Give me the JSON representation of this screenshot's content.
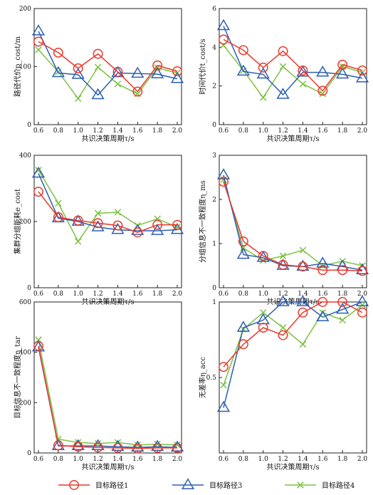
{
  "legend": [
    {
      "key": "s1",
      "label": "目标路径1",
      "color": "#e8392b",
      "marker": "circle"
    },
    {
      "key": "s3",
      "label": "目标路径3",
      "color": "#2d5fb3",
      "marker": "triangle"
    },
    {
      "key": "s4",
      "label": "目标路径4",
      "color": "#7cc242",
      "marker": "x"
    }
  ],
  "chart_data": [
    {
      "id": "path-cost",
      "type": "line",
      "ylabel": "路径代价p_cost/m",
      "xlabel": "共识决策周期τ/s",
      "x": [
        0.6,
        0.8,
        1.0,
        1.2,
        1.4,
        1.6,
        1.8,
        2.0
      ],
      "xticks": [
        "0.6",
        "0.8",
        "1.0",
        "1.2",
        "1.4",
        "1.6",
        "1.8",
        "2.0"
      ],
      "ylim": [
        0,
        200
      ],
      "yticks": [
        0,
        100,
        200
      ],
      "series": [
        {
          "name": "目标路径1",
          "values": [
            143,
            124,
            97,
            122,
            91,
            57,
            102,
            92
          ]
        },
        {
          "name": "目标路径3",
          "values": [
            161,
            89,
            86,
            51,
            89,
            88,
            87,
            79
          ]
        },
        {
          "name": "目标路径4",
          "values": [
            129,
            91,
            45,
            99,
            70,
            53,
            98,
            89
          ]
        }
      ]
    },
    {
      "id": "time-cost",
      "type": "line",
      "ylabel": "时间代价t_cost/s",
      "xlabel": "共识决策周期τ/s",
      "x": [
        0.6,
        0.8,
        1.0,
        1.2,
        1.4,
        1.6,
        1.8,
        2.0
      ],
      "xticks": [
        "0.6",
        "0.8",
        "1.0",
        "1.2",
        "1.4",
        "1.6",
        "1.8",
        "2.0"
      ],
      "ylim": [
        0,
        6
      ],
      "yticks": [
        0,
        2,
        4,
        6
      ],
      "series": [
        {
          "name": "目标路径1",
          "values": [
            4.4,
            3.85,
            2.95,
            3.8,
            2.8,
            1.75,
            3.1,
            2.8
          ]
        },
        {
          "name": "目标路径3",
          "values": [
            5.1,
            2.75,
            2.6,
            1.55,
            2.7,
            2.7,
            2.6,
            2.4
          ]
        },
        {
          "name": "目标路径4",
          "values": [
            4.1,
            2.8,
            1.4,
            3.0,
            2.1,
            1.6,
            3.0,
            2.7
          ]
        }
      ]
    },
    {
      "id": "cluster-energy",
      "type": "line",
      "ylabel": "集群分组能耗e_cost",
      "xlabel": "共识决策周期τ/s",
      "x": [
        0.6,
        0.8,
        1.0,
        1.2,
        1.4,
        1.6,
        1.8,
        2.0
      ],
      "xticks": [
        "0.6",
        "0.8",
        "1.0",
        "1.2",
        "1.4",
        "1.6",
        "1.8",
        "2.0"
      ],
      "ylim": [
        0,
        400
      ],
      "yticks": [
        0,
        200,
        400
      ],
      "series": [
        {
          "name": "目标路径1",
          "values": [
            290,
            213,
            203,
            195,
            188,
            167,
            190,
            190
          ]
        },
        {
          "name": "目标路径3",
          "values": [
            345,
            210,
            200,
            183,
            175,
            172,
            172,
            175
          ]
        },
        {
          "name": "目标路径4",
          "values": [
            355,
            255,
            140,
            225,
            228,
            188,
            208,
            183
          ]
        }
      ]
    },
    {
      "id": "group-inconsistency",
      "type": "line",
      "ylabel": "分组信息不一致程度η_ms",
      "xlabel": "共识决策周期τ/s",
      "x": [
        0.6,
        0.8,
        1.0,
        1.2,
        1.4,
        1.6,
        1.8,
        2.0
      ],
      "xticks": [
        "0.6",
        "0.8",
        "1.0",
        "1.2",
        "1.4",
        "1.6",
        "1.8",
        "2.0"
      ],
      "ylim": [
        0,
        3
      ],
      "yticks": [
        0,
        1,
        2,
        3
      ],
      "series": [
        {
          "name": "目标路径1",
          "values": [
            2.4,
            1.05,
            0.72,
            0.52,
            0.48,
            0.4,
            0.4,
            0.38
          ]
        },
        {
          "name": "目标路径3",
          "values": [
            2.55,
            0.75,
            0.68,
            0.5,
            0.48,
            0.55,
            0.48,
            0.4
          ]
        },
        {
          "name": "目标路径4",
          "values": [
            2.45,
            0.9,
            0.62,
            0.72,
            0.85,
            0.5,
            0.6,
            0.5
          ]
        }
      ]
    },
    {
      "id": "target-inconsistency",
      "type": "line",
      "ylabel": "目标信息不一致程度η_tar",
      "xlabel": "共识决策周期τ/s",
      "x": [
        0.6,
        0.8,
        1.0,
        1.2,
        1.4,
        1.6,
        1.8,
        2.0
      ],
      "xticks": [
        "0.6",
        "0.8",
        "1.0",
        "1.2",
        "1.4",
        "1.6",
        "1.8",
        "2.0"
      ],
      "ylim": [
        0,
        600
      ],
      "yticks": [
        0,
        200,
        400,
        600
      ],
      "series": [
        {
          "name": "目标路径1",
          "values": [
            425,
            30,
            25,
            22,
            20,
            18,
            20,
            20
          ]
        },
        {
          "name": "目标路径3",
          "values": [
            420,
            28,
            28,
            28,
            25,
            22,
            25,
            22
          ]
        },
        {
          "name": "目标路径4",
          "values": [
            450,
            55,
            42,
            38,
            42,
            32,
            35,
            32
          ]
        }
      ]
    },
    {
      "id": "conflict-free-rate",
      "type": "line",
      "ylabel": "无差率η_acc",
      "xlabel": "共识决策周期τ/s",
      "x": [
        0.6,
        0.8,
        1.0,
        1.2,
        1.4,
        1.6,
        1.8,
        2.0
      ],
      "xticks": [
        "0.6",
        "0.8",
        "1.0",
        "1.2",
        "1.4",
        "1.6",
        "1.8",
        "2.0"
      ],
      "ylim": [
        0,
        1.0
      ],
      "yticks": [
        0.5,
        1.0
      ],
      "series": [
        {
          "name": "目标路径1",
          "values": [
            0.57,
            0.72,
            0.83,
            0.78,
            0.93,
            1.0,
            1.0,
            0.93
          ]
        },
        {
          "name": "目标路径3",
          "values": [
            0.3,
            0.83,
            0.88,
            1.0,
            1.0,
            0.9,
            0.95,
            1.0
          ]
        },
        {
          "name": "目标路径4",
          "values": [
            0.45,
            0.82,
            0.93,
            0.83,
            0.72,
            0.93,
            0.88,
            0.98
          ]
        }
      ]
    }
  ]
}
